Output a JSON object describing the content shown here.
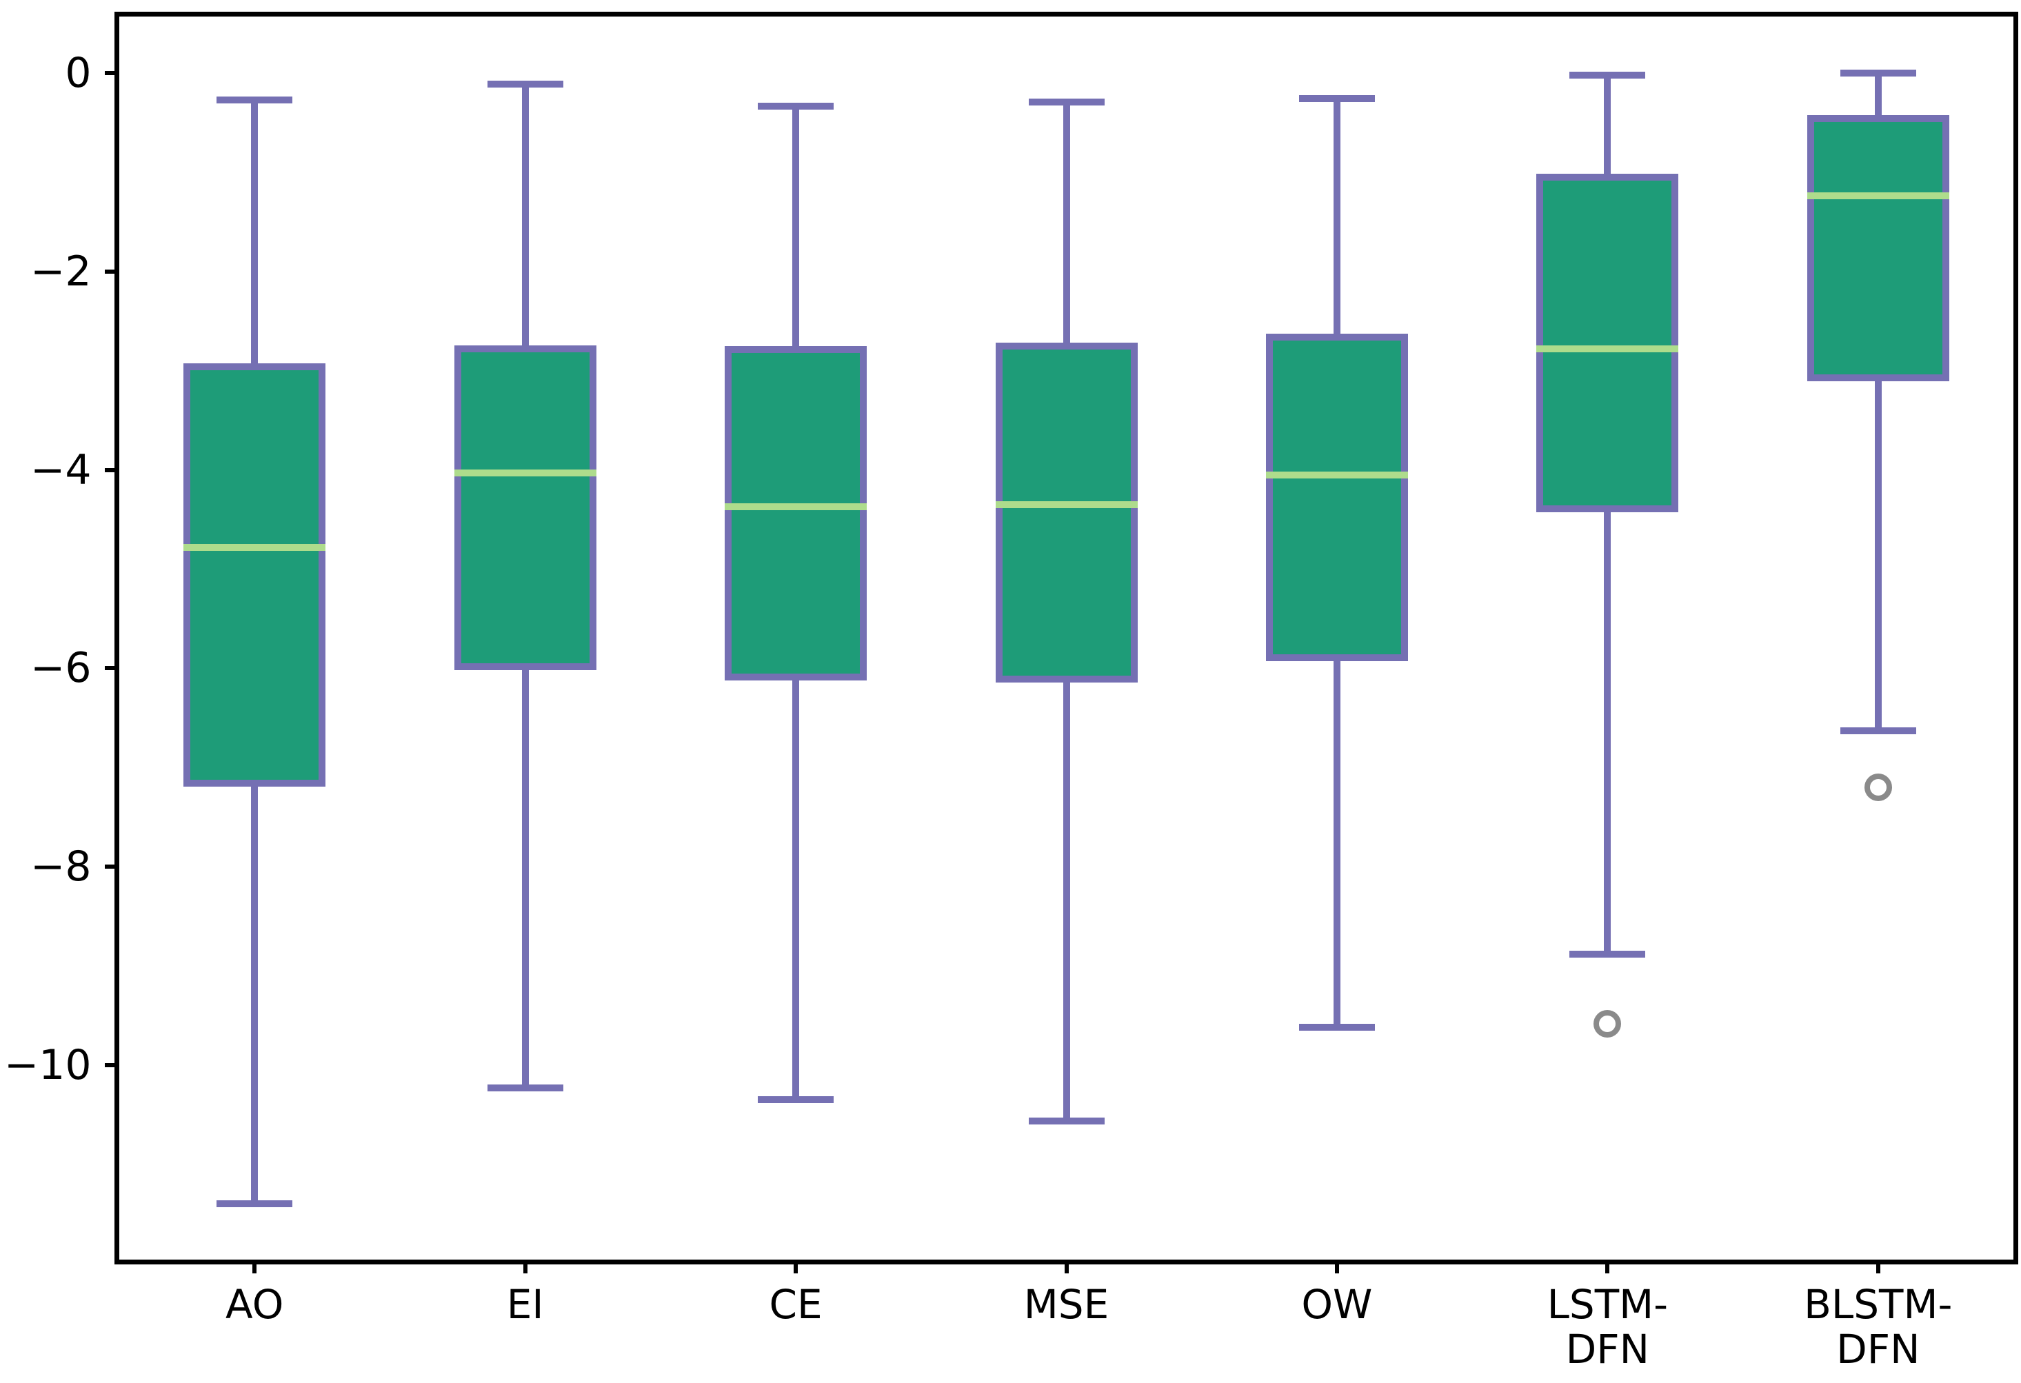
{
  "chart_data": {
    "type": "box",
    "title": "",
    "xlabel": "",
    "ylabel": "",
    "categories": [
      "AO",
      "EI",
      "CE",
      "MSE",
      "OW",
      "LSTM-DFN",
      "BLSTM-DFN"
    ],
    "category_label_lines": [
      [
        "AO"
      ],
      [
        "EI"
      ],
      [
        "CE"
      ],
      [
        "MSE"
      ],
      [
        "OW"
      ],
      [
        "LSTM-",
        "DFN"
      ],
      [
        "BLSTM-",
        "DFN"
      ]
    ],
    "series": [
      {
        "name": "AO",
        "whisker_low": -11.4,
        "q1": -7.16,
        "median": -4.78,
        "q3": -2.96,
        "whisker_high": -0.27,
        "outliers": []
      },
      {
        "name": "EI",
        "whisker_low": -10.23,
        "q1": -5.98,
        "median": -4.03,
        "q3": -2.78,
        "whisker_high": -0.11,
        "outliers": []
      },
      {
        "name": "CE",
        "whisker_low": -10.35,
        "q1": -6.09,
        "median": -4.37,
        "q3": -2.79,
        "whisker_high": -0.33,
        "outliers": []
      },
      {
        "name": "MSE",
        "whisker_low": -10.56,
        "q1": -6.11,
        "median": -4.35,
        "q3": -2.75,
        "whisker_high": -0.29,
        "outliers": []
      },
      {
        "name": "OW",
        "whisker_low": -9.62,
        "q1": -5.89,
        "median": -4.05,
        "q3": -2.66,
        "whisker_high": -0.26,
        "outliers": []
      },
      {
        "name": "LSTM-DFN",
        "whisker_low": -8.88,
        "q1": -4.39,
        "median": -2.78,
        "q3": -1.05,
        "whisker_high": -0.02,
        "outliers": [
          -9.58
        ]
      },
      {
        "name": "BLSTM-DFN",
        "whisker_low": -6.63,
        "q1": -3.07,
        "median": -1.24,
        "q3": -0.46,
        "whisker_high": 0.0,
        "outliers": [
          -7.2
        ]
      }
    ],
    "ylim": [
      -11.96,
      0.57
    ],
    "yticks": {
      "values": [
        0,
        -2,
        -4,
        -6,
        -8,
        -10
      ],
      "labels": [
        "0",
        "−2",
        "−4",
        "−6",
        "−8",
        "−10"
      ]
    },
    "grid": false,
    "legend": null
  },
  "style": {
    "box_fill": "#1e9c78",
    "box_edge": "#7570b3",
    "median_color": "#aedc8c",
    "flier_edge": "#8a8a8a",
    "spine_color": "#000000",
    "background": "#ffffff"
  }
}
